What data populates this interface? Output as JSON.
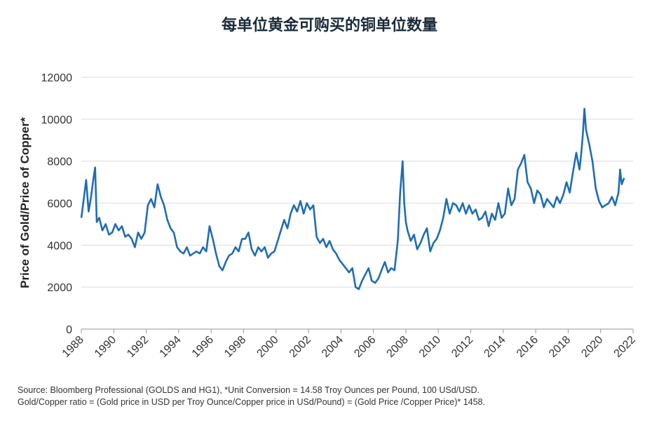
{
  "chart_data": {
    "type": "line",
    "title": "每单位黄金可购买的铜单位数量",
    "xlabel": "",
    "ylabel": "Price of Gold/Price of Copper*",
    "xlim": [
      1988,
      2022
    ],
    "ylim": [
      0,
      12000
    ],
    "x_ticks": [
      "1988",
      "1990",
      "1992",
      "1994",
      "1996",
      "1998",
      "2000",
      "2002",
      "2004",
      "2006",
      "2008",
      "2010",
      "2012",
      "2014",
      "2016",
      "2018",
      "2020",
      "2022"
    ],
    "y_ticks": [
      "0",
      "2000",
      "4000",
      "6000",
      "8000",
      "10000",
      "12000"
    ],
    "grid": "horizontal",
    "legend": "none",
    "color": "#1f6db3",
    "series": [
      {
        "x": [
          1988.0,
          1988.15,
          1988.3,
          1988.45,
          1988.6,
          1988.75,
          1988.85,
          1988.95,
          1989.1,
          1989.3,
          1989.5,
          1989.7,
          1989.9,
          1990.1,
          1990.3,
          1990.5,
          1990.7,
          1990.9,
          1991.1,
          1991.3,
          1991.5,
          1991.7,
          1991.9,
          1992.1,
          1992.3,
          1992.5,
          1992.7,
          1992.9,
          1993.1,
          1993.3,
          1993.5,
          1993.7,
          1993.9,
          1994.1,
          1994.3,
          1994.5,
          1994.7,
          1994.9,
          1995.1,
          1995.3,
          1995.5,
          1995.7,
          1995.9,
          1996.1,
          1996.3,
          1996.5,
          1996.7,
          1996.9,
          1997.1,
          1997.3,
          1997.5,
          1997.7,
          1997.9,
          1998.1,
          1998.3,
          1998.5,
          1998.7,
          1998.9,
          1999.1,
          1999.3,
          1999.5,
          1999.7,
          1999.9,
          2000.1,
          2000.3,
          2000.5,
          2000.7,
          2000.9,
          2001.1,
          2001.3,
          2001.5,
          2001.7,
          2001.9,
          2002.1,
          2002.3,
          2002.5,
          2002.7,
          2002.9,
          2003.1,
          2003.3,
          2003.5,
          2003.7,
          2003.9,
          2004.1,
          2004.3,
          2004.5,
          2004.7,
          2004.9,
          2005.1,
          2005.3,
          2005.5,
          2005.7,
          2005.9,
          2006.1,
          2006.3,
          2006.5,
          2006.7,
          2006.9,
          2007.1,
          2007.3,
          2007.5,
          2007.65,
          2007.8,
          2007.9,
          2008.0,
          2008.1,
          2008.3,
          2008.5,
          2008.7,
          2008.9,
          2009.1,
          2009.3,
          2009.5,
          2009.7,
          2009.9,
          2010.1,
          2010.3,
          2010.5,
          2010.7,
          2010.9,
          2011.1,
          2011.3,
          2011.5,
          2011.7,
          2011.9,
          2012.1,
          2012.3,
          2012.5,
          2012.7,
          2012.9,
          2013.1,
          2013.3,
          2013.5,
          2013.7,
          2013.9,
          2014.1,
          2014.3,
          2014.5,
          2014.7,
          2014.9,
          2015.1,
          2015.3,
          2015.5,
          2015.7,
          2015.9,
          2016.1,
          2016.3,
          2016.5,
          2016.7,
          2016.9,
          2017.1,
          2017.3,
          2017.5,
          2017.7,
          2017.9,
          2018.1,
          2018.3,
          2018.5,
          2018.7,
          2018.8,
          2018.9,
          2019.0,
          2019.1,
          2019.3,
          2019.5,
          2019.7,
          2019.9,
          2020.1,
          2020.3,
          2020.5,
          2020.7,
          2020.9,
          2021.1,
          2021.2,
          2021.3,
          2021.45
        ],
        "y": [
          5300,
          6200,
          7100,
          5600,
          6300,
          7200,
          7700,
          5100,
          5300,
          4700,
          5000,
          4500,
          4600,
          5000,
          4700,
          4900,
          4400,
          4500,
          4300,
          3900,
          4600,
          4300,
          4600,
          5900,
          6200,
          5800,
          6900,
          6300,
          5900,
          5200,
          4800,
          4600,
          3900,
          3700,
          3600,
          3900,
          3500,
          3600,
          3700,
          3600,
          3900,
          3700,
          4900,
          4300,
          3600,
          3000,
          2800,
          3200,
          3500,
          3600,
          3900,
          3700,
          4300,
          4300,
          4600,
          3800,
          3500,
          3900,
          3700,
          3900,
          3400,
          3600,
          3700,
          4200,
          4700,
          5200,
          4800,
          5500,
          5900,
          5600,
          6100,
          5500,
          6000,
          5700,
          5900,
          4400,
          4100,
          4300,
          3900,
          4200,
          3800,
          3600,
          3300,
          3100,
          2900,
          2700,
          2900,
          2000,
          1900,
          2300,
          2600,
          2900,
          2300,
          2200,
          2400,
          2800,
          3200,
          2700,
          2900,
          2800,
          4200,
          6500,
          8000,
          6000,
          5100,
          4700,
          4200,
          4500,
          3800,
          4100,
          4500,
          4800,
          3700,
          4100,
          4300,
          4700,
          5300,
          6200,
          5500,
          6000,
          5900,
          5600,
          6000,
          5500,
          5900,
          5500,
          5700,
          5200,
          5300,
          5600,
          4900,
          5500,
          5200,
          6000,
          5300,
          5500,
          6700,
          5900,
          6200,
          7600,
          7900,
          8300,
          7000,
          6700,
          6000,
          6600,
          6400,
          5800,
          6200,
          6000,
          5800,
          6300,
          6000,
          6400,
          7000,
          6500,
          7500,
          8400,
          7600,
          8300,
          9200,
          10500,
          9500,
          8800,
          8000,
          6700,
          6100,
          5800,
          5900,
          6000,
          6300,
          5900,
          6500,
          7600,
          6900,
          7200
        ]
      }
    ],
    "source_lines": [
      "Source: Bloomberg Professional (GOLDS and HG1), *Unit Conversion = 14.58 Troy Ounces per Pound, 100 USd/USD.",
      "Gold/Copper ratio = (Gold price in USD per Troy Ounce/Copper price in USd/Pound) = (Gold Price /Copper Price)* 1458."
    ]
  }
}
